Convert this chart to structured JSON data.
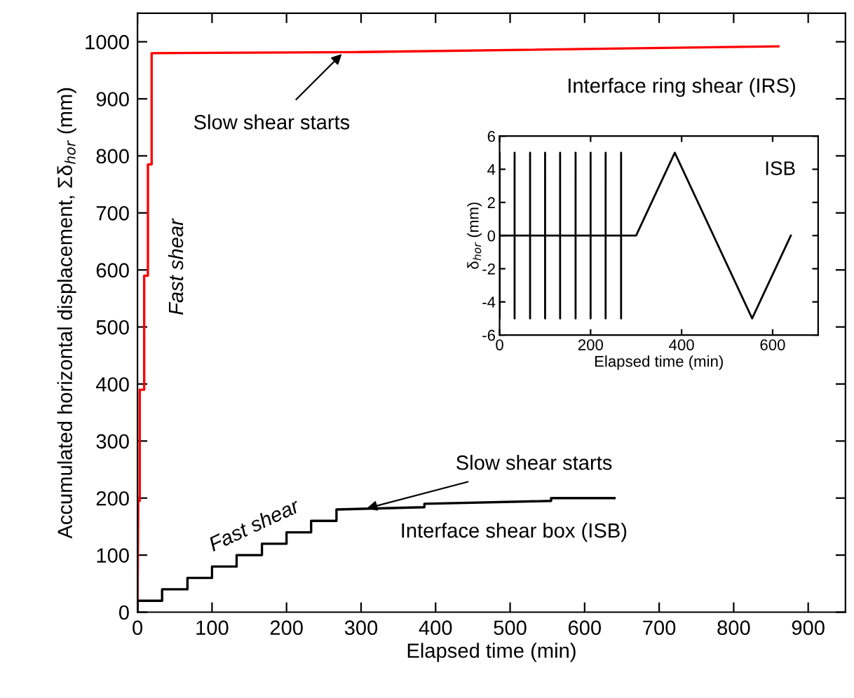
{
  "chart_data": [
    {
      "type": "line",
      "xlabel": "Elapsed time (min)",
      "ylabel": "Accumulated horizontal displacement, Σδ$_{hor}$ (mm)",
      "xlim": [
        0,
        950
      ],
      "xticks": [
        0,
        100,
        200,
        300,
        400,
        500,
        600,
        700,
        800,
        900
      ],
      "ylim": [
        0,
        1050
      ],
      "yticks": [
        0,
        100,
        200,
        300,
        400,
        500,
        600,
        700,
        800,
        900,
        1000
      ],
      "series": [
        {
          "color": "#ff0000",
          "x": [
            0,
            1,
            3,
            3,
            9,
            9,
            14,
            14,
            19,
            19,
            300,
            860
          ],
          "values": [
            0,
            195,
            195,
            390,
            390,
            590,
            590,
            785,
            785,
            980,
            982,
            992
          ]
        },
        {
          "color": "#000000",
          "x": [
            0,
            0,
            33,
            33,
            67,
            67,
            100,
            100,
            133,
            133,
            167,
            167,
            200,
            200,
            233,
            233,
            267,
            267,
            385,
            385,
            555,
            555,
            640
          ],
          "values": [
            0,
            20,
            20,
            40,
            40,
            60,
            60,
            80,
            80,
            100,
            100,
            120,
            120,
            140,
            140,
            160,
            160,
            180,
            184,
            190,
            195,
            200,
            200
          ]
        }
      ],
      "annotations": [
        {
          "text": "Slow shear starts",
          "x": 276,
          "y": 981
        },
        {
          "text": "Slow shear starts",
          "x": 305,
          "y": 181
        },
        "Fast shear",
        "Fast shear",
        "Interface ring shear (IRS)",
        "Interface shear box (ISB)"
      ],
      "legend": false,
      "grid": false,
      "marker": "none",
      "line_style": "solid"
    },
    {
      "type": "line",
      "xlabel": "Elapsed time (min)",
      "ylabel": "δ$_{hor}$ (mm)",
      "xlim": [
        0,
        700
      ],
      "xticks": [
        0,
        200,
        400,
        600
      ],
      "ylim": [
        -6,
        6
      ],
      "yticks": [
        -6,
        -4,
        -2,
        0,
        2,
        4,
        6
      ],
      "series": [
        {
          "color": "#000000",
          "x": [
            0,
            0,
            0,
            0,
            33,
            33,
            33,
            33,
            67,
            67,
            67,
            67,
            100,
            100,
            100,
            100,
            133,
            133,
            133,
            133,
            167,
            167,
            167,
            167,
            200,
            200,
            200,
            200,
            233,
            233,
            233,
            233,
            267,
            267,
            267,
            267,
            300,
            385,
            555,
            640
          ],
          "values": [
            0,
            5,
            -5,
            0,
            0,
            5,
            -5,
            0,
            0,
            5,
            -5,
            0,
            0,
            5,
            -5,
            0,
            0,
            5,
            -5,
            0,
            0,
            5,
            -5,
            0,
            0,
            5,
            -5,
            0,
            0,
            5,
            -5,
            0,
            0,
            5,
            -5,
            0,
            0,
            5,
            -5,
            0
          ]
        }
      ],
      "annotations": [
        "ISB"
      ],
      "legend": false,
      "grid": false,
      "marker": "none",
      "line_style": "solid"
    }
  ]
}
